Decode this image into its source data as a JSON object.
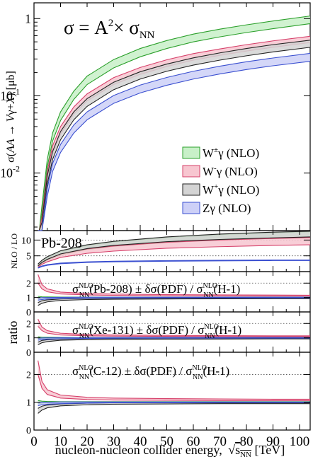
{
  "chart_data": [
    {
      "type": "area",
      "panel": "main",
      "title": "σ = A²× σNN",
      "title_parts": {
        "pre": "σ = A",
        "sup": "2",
        "mid": "× σ",
        "sub": "NN"
      },
      "ylabel": "σ(AA → Vγ+X) [μb]",
      "ylabel_parts": {
        "pre": "σ(",
        "it1": "AA",
        "arrow": " → ",
        "it2": "V",
        "gamma": "γ+",
        "it3": "X",
        "post": ") [μb]"
      },
      "yscale": "log",
      "ylim": [
        0.0018,
        1.6
      ],
      "y_ticks": [
        {
          "value": 0.01,
          "label": "10",
          "exp": "-2"
        },
        {
          "value": 0.1,
          "label": "10",
          "exp": "-1"
        },
        {
          "value": 1,
          "label": "1",
          "exp": ""
        }
      ],
      "legend_placement": "center-right",
      "x": [
        1.5,
        2,
        3,
        5,
        7,
        10,
        15,
        20,
        30,
        40,
        50,
        60,
        70,
        80,
        90,
        104
      ],
      "series": [
        {
          "name": "W±γ  (NLO)",
          "label_base": "W",
          "label_sup": "±",
          "label_rest": "γ  (NLO)",
          "color": "#2ca02c",
          "fill": "#c8f0c8",
          "lower": [
            0.0003,
            0.0008,
            0.003,
            0.012,
            0.026,
            0.048,
            0.09,
            0.14,
            0.23,
            0.32,
            0.41,
            0.5,
            0.58,
            0.66,
            0.74,
            0.86
          ],
          "upper": [
            0.00038,
            0.001,
            0.0038,
            0.015,
            0.033,
            0.062,
            0.115,
            0.18,
            0.295,
            0.41,
            0.52,
            0.63,
            0.73,
            0.83,
            0.93,
            1.08
          ]
        },
        {
          "name": "W-γ  (NLO)",
          "label_base": "W",
          "label_sup": "-",
          "label_rest": "γ  (NLO)",
          "color": "#d6406a",
          "fill": "#f7c6d0",
          "lower": [
            0.0002,
            0.00055,
            0.0021,
            0.0085,
            0.018,
            0.032,
            0.058,
            0.086,
            0.14,
            0.19,
            0.24,
            0.29,
            0.335,
            0.38,
            0.425,
            0.49
          ],
          "upper": [
            0.00026,
            0.0007,
            0.0027,
            0.0105,
            0.0225,
            0.04,
            0.072,
            0.106,
            0.172,
            0.233,
            0.293,
            0.352,
            0.405,
            0.46,
            0.515,
            0.59
          ]
        },
        {
          "name": "W+γ  (NLO)",
          "label_base": "W",
          "label_sup": "+",
          "label_rest": "γ  (NLO)",
          "color": "#222222",
          "fill": "#d4d4d4",
          "lower": [
            0.00016,
            0.00045,
            0.0018,
            0.0072,
            0.015,
            0.027,
            0.049,
            0.073,
            0.12,
            0.165,
            0.208,
            0.25,
            0.29,
            0.33,
            0.37,
            0.425
          ],
          "upper": [
            0.00021,
            0.00058,
            0.0023,
            0.0092,
            0.019,
            0.0345,
            0.062,
            0.092,
            0.15,
            0.205,
            0.258,
            0.31,
            0.36,
            0.41,
            0.46,
            0.525
          ]
        },
        {
          "name": "Zγ  (NLO)",
          "label_base": "Zγ  (NLO)",
          "label_sup": "",
          "label_rest": "",
          "color": "#3a4fd0",
          "fill": "#cdd0f7",
          "lower": [
            0.00012,
            0.00032,
            0.0013,
            0.005,
            0.0105,
            0.0185,
            0.033,
            0.049,
            0.08,
            0.109,
            0.137,
            0.165,
            0.192,
            0.219,
            0.245,
            0.28
          ],
          "upper": [
            0.00015,
            0.0004,
            0.0016,
            0.0064,
            0.0133,
            0.0235,
            0.042,
            0.062,
            0.101,
            0.138,
            0.173,
            0.208,
            0.242,
            0.276,
            0.309,
            0.355
          ]
        }
      ]
    },
    {
      "type": "area",
      "panel": "k-factor",
      "label": "Pb-208",
      "ylabel": "NLO / LO",
      "ylim": [
        0,
        13
      ],
      "y_ticks": [
        {
          "value": 5,
          "label": "5"
        },
        {
          "value": 10,
          "label": "10"
        }
      ],
      "grid_lines": [
        5,
        10
      ],
      "x": [
        1.5,
        3,
        5,
        10,
        20,
        30,
        50,
        70,
        90,
        104
      ],
      "series": [
        {
          "color": "#2ca02c",
          "fill": "#c8f0c8",
          "lower": [
            1.6,
            2.6,
            3.6,
            5.3,
            7.0,
            8.0,
            9.2,
            10.0,
            10.5,
            10.8
          ],
          "upper": [
            2.2,
            3.3,
            4.4,
            6.3,
            8.3,
            9.4,
            10.8,
            11.7,
            12.3,
            12.6
          ]
        },
        {
          "color": "#d6406a",
          "fill": "#f7c6d0",
          "lower": [
            1.4,
            2.3,
            3.1,
            4.5,
            5.8,
            6.5,
            7.4,
            7.9,
            8.3,
            8.5
          ],
          "upper": [
            2.0,
            3.0,
            3.9,
            5.6,
            7.2,
            8.1,
            9.3,
            10.0,
            10.5,
            10.8
          ]
        },
        {
          "color": "#222222",
          "fill": "#d4d4d4",
          "lower": [
            1.8,
            2.9,
            3.9,
            5.6,
            7.3,
            8.3,
            9.5,
            10.2,
            10.7,
            11.0
          ],
          "upper": [
            2.4,
            3.6,
            4.7,
            6.6,
            8.5,
            9.6,
            11.0,
            11.9,
            12.5,
            12.8
          ]
        },
        {
          "color": "#3a4fd0",
          "fill": "#cdd0f7",
          "lower": [
            1.1,
            1.6,
            2.0,
            2.5,
            2.9,
            3.1,
            3.3,
            3.4,
            3.5,
            3.5
          ],
          "upper": [
            1.3,
            1.8,
            2.2,
            2.7,
            3.1,
            3.3,
            3.5,
            3.6,
            3.7,
            3.7
          ]
        }
      ]
    },
    {
      "type": "area",
      "panel": "ratio-pb208",
      "label_parts": {
        "s1": "σ",
        "sup1": "NLO",
        "sub1": "NN",
        "t1": "(Pb-208) ± δσ(PDF) / σ",
        "sup2": "NLO",
        "sub2": "NN",
        "t2": "(H-1)"
      },
      "ylim": [
        0,
        2.8
      ],
      "y_ticks": [
        {
          "value": 0,
          "label": "0"
        },
        {
          "value": 1,
          "label": "1"
        },
        {
          "value": 2,
          "label": "2"
        }
      ],
      "grid_lines": [
        1,
        2
      ],
      "x": [
        1.5,
        3,
        5,
        10,
        20,
        30,
        50,
        70,
        90,
        104
      ],
      "series": [
        {
          "color": "#2ca02c",
          "fill": "#c8f0c8",
          "lower": [
            0.92,
            0.95,
            0.97,
            0.99,
            1.0,
            1.0,
            1.0,
            1.0,
            1.0,
            1.0
          ],
          "upper": [
            1.08,
            1.05,
            1.04,
            1.03,
            1.03,
            1.02,
            1.02,
            1.02,
            1.02,
            1.02
          ]
        },
        {
          "color": "#d6406a",
          "fill": "#f7c6d0",
          "lower": [
            2.0,
            1.6,
            1.4,
            1.25,
            1.18,
            1.15,
            1.12,
            1.11,
            1.1,
            1.1
          ],
          "upper": [
            2.6,
            1.9,
            1.6,
            1.38,
            1.28,
            1.24,
            1.2,
            1.18,
            1.17,
            1.16
          ]
        },
        {
          "color": "#222222",
          "fill": "#d4d4d4",
          "lower": [
            0.45,
            0.6,
            0.7,
            0.8,
            0.86,
            0.88,
            0.9,
            0.91,
            0.92,
            0.92
          ],
          "upper": [
            0.65,
            0.78,
            0.84,
            0.9,
            0.94,
            0.95,
            0.96,
            0.96,
            0.97,
            0.97
          ]
        },
        {
          "color": "#3a4fd0",
          "fill": "#cdd0f7",
          "lower": [
            0.82,
            0.86,
            0.9,
            0.93,
            0.96,
            0.97,
            0.98,
            0.98,
            0.98,
            0.98
          ],
          "upper": [
            0.98,
            0.99,
            1.0,
            1.01,
            1.02,
            1.02,
            1.02,
            1.02,
            1.02,
            1.02
          ]
        }
      ]
    },
    {
      "type": "area",
      "panel": "ratio-xe131",
      "ylabel": "ratio",
      "label_parts": {
        "s1": "σ",
        "sup1": "NLO",
        "sub1": "NN",
        "t1": "(Xe-131) ± δσ(PDF) / σ",
        "sup2": "NLO",
        "sub2": "NN",
        "t2": "(H-1)"
      },
      "ylim": [
        0,
        2.8
      ],
      "y_ticks": [
        {
          "value": 0,
          "label": "0"
        },
        {
          "value": 1,
          "label": "1"
        },
        {
          "value": 2,
          "label": "2"
        }
      ],
      "grid_lines": [
        1,
        2
      ],
      "x": [
        1.5,
        3,
        5,
        10,
        20,
        30,
        50,
        70,
        90,
        104
      ],
      "series": [
        {
          "color": "#2ca02c",
          "fill": "#c8f0c8",
          "lower": [
            0.93,
            0.96,
            0.97,
            0.99,
            1.0,
            1.0,
            1.0,
            1.0,
            1.0,
            1.0
          ],
          "upper": [
            1.07,
            1.05,
            1.04,
            1.03,
            1.02,
            1.02,
            1.02,
            1.02,
            1.02,
            1.02
          ]
        },
        {
          "color": "#d6406a",
          "fill": "#f7c6d0",
          "lower": [
            1.8,
            1.5,
            1.32,
            1.2,
            1.14,
            1.12,
            1.1,
            1.09,
            1.08,
            1.08
          ],
          "upper": [
            2.3,
            1.75,
            1.5,
            1.32,
            1.23,
            1.2,
            1.17,
            1.15,
            1.14,
            1.14
          ]
        },
        {
          "color": "#222222",
          "fill": "#d4d4d4",
          "lower": [
            0.52,
            0.66,
            0.74,
            0.83,
            0.88,
            0.9,
            0.91,
            0.92,
            0.93,
            0.93
          ],
          "upper": [
            0.7,
            0.82,
            0.87,
            0.92,
            0.95,
            0.96,
            0.97,
            0.97,
            0.97,
            0.97
          ]
        },
        {
          "color": "#3a4fd0",
          "fill": "#cdd0f7",
          "lower": [
            0.84,
            0.88,
            0.91,
            0.94,
            0.96,
            0.97,
            0.98,
            0.98,
            0.98,
            0.98
          ],
          "upper": [
            0.98,
            0.99,
            1.0,
            1.01,
            1.02,
            1.02,
            1.02,
            1.02,
            1.02,
            1.02
          ]
        }
      ]
    },
    {
      "type": "area",
      "panel": "ratio-c12",
      "label_parts": {
        "s1": "σ",
        "sup1": "NLO",
        "sub1": "NN",
        "t1": "(C-12) ± δσ(PDF) / σ",
        "sup2": "NLO",
        "sub2": "NN",
        "t2": "(H-1)"
      },
      "xlabel": "nucleon-nucleon collider energy, √sNN [TeV]",
      "xlabel_parts": {
        "pre": "nucleon-nucleon collider energy, ",
        "root": "s",
        "sub": "NN",
        "post": " [TeV]"
      },
      "xlim": [
        0,
        104
      ],
      "x_ticks": [
        0,
        10,
        20,
        30,
        40,
        50,
        60,
        70,
        80,
        90,
        100
      ],
      "ylim": [
        0,
        2.8
      ],
      "y_ticks": [
        {
          "value": 0,
          "label": "0"
        },
        {
          "value": 1,
          "label": "1"
        },
        {
          "value": 2,
          "label": "2"
        }
      ],
      "grid_lines": [
        1,
        2
      ],
      "x": [
        1.5,
        3,
        5,
        10,
        20,
        30,
        50,
        70,
        90,
        104
      ],
      "series": [
        {
          "color": "#2ca02c",
          "fill": "#c8f0c8",
          "lower": [
            0.95,
            0.97,
            0.98,
            0.99,
            1.0,
            1.0,
            1.0,
            1.0,
            1.0,
            1.0
          ],
          "upper": [
            1.06,
            1.04,
            1.03,
            1.02,
            1.02,
            1.02,
            1.02,
            1.02,
            1.02,
            1.02
          ]
        },
        {
          "color": "#d6406a",
          "fill": "#f7c6d0",
          "lower": [
            2.0,
            1.5,
            1.28,
            1.15,
            1.1,
            1.08,
            1.07,
            1.06,
            1.06,
            1.06
          ],
          "upper": [
            2.5,
            1.75,
            1.45,
            1.26,
            1.18,
            1.15,
            1.13,
            1.12,
            1.11,
            1.11
          ]
        },
        {
          "color": "#222222",
          "fill": "#d4d4d4",
          "lower": [
            0.6,
            0.72,
            0.8,
            0.87,
            0.91,
            0.93,
            0.94,
            0.95,
            0.95,
            0.95
          ],
          "upper": [
            0.78,
            0.86,
            0.9,
            0.94,
            0.97,
            0.98,
            0.98,
            0.98,
            0.98,
            0.98
          ]
        },
        {
          "color": "#3a4fd0",
          "fill": "#cdd0f7",
          "lower": [
            0.88,
            0.91,
            0.93,
            0.95,
            0.97,
            0.98,
            0.98,
            0.99,
            0.99,
            0.99
          ],
          "upper": [
            0.99,
            1.0,
            1.0,
            1.01,
            1.01,
            1.01,
            1.01,
            1.01,
            1.01,
            1.01
          ]
        }
      ]
    }
  ]
}
